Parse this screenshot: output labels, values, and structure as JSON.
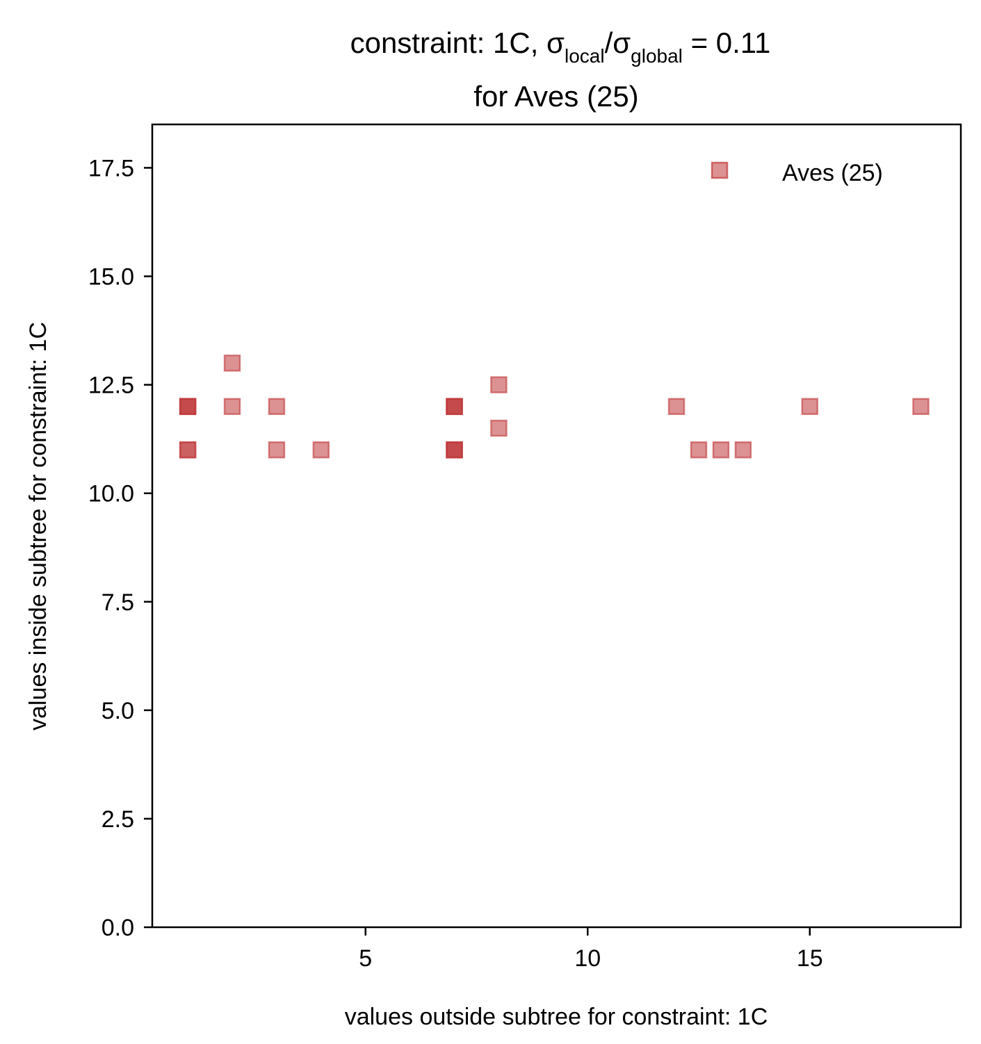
{
  "chart_data": {
    "type": "scatter",
    "title": {
      "line1_prefix": "constraint: 1C, σ",
      "local_sub": "local",
      "slash": "/σ",
      "global_sub": "global",
      "line1_suffix": " =  0.11",
      "line2": "for Aves (25)"
    },
    "xlabel": "values outside subtree for constraint: 1C",
    "ylabel": "values inside subtree for constraint: 1C",
    "xlim": [
      0.2,
      18.4
    ],
    "ylim": [
      0,
      18.5
    ],
    "xticks": [
      5,
      10,
      15
    ],
    "yticks": [
      0.0,
      2.5,
      5.0,
      7.5,
      10.0,
      12.5,
      15.0,
      17.5
    ],
    "grid": false,
    "legend_position": "top-right",
    "series": [
      {
        "name": "Aves (25)",
        "marker": "square",
        "color": "#c0393b",
        "alpha": 0.55,
        "points": [
          [
            1,
            12
          ],
          [
            1,
            12
          ],
          [
            1,
            12
          ],
          [
            1,
            11
          ],
          [
            1,
            11
          ],
          [
            2,
            13
          ],
          [
            2,
            12
          ],
          [
            3,
            12
          ],
          [
            3,
            11
          ],
          [
            4,
            11
          ],
          [
            7,
            12
          ],
          [
            7,
            12
          ],
          [
            7,
            12
          ],
          [
            7,
            11
          ],
          [
            7,
            11
          ],
          [
            7,
            11
          ],
          [
            8,
            12.5
          ],
          [
            8,
            11.5
          ],
          [
            12,
            12
          ],
          [
            12.5,
            11
          ],
          [
            13,
            11
          ],
          [
            13.5,
            11
          ],
          [
            15,
            12
          ],
          [
            17.5,
            12
          ]
        ]
      }
    ]
  }
}
